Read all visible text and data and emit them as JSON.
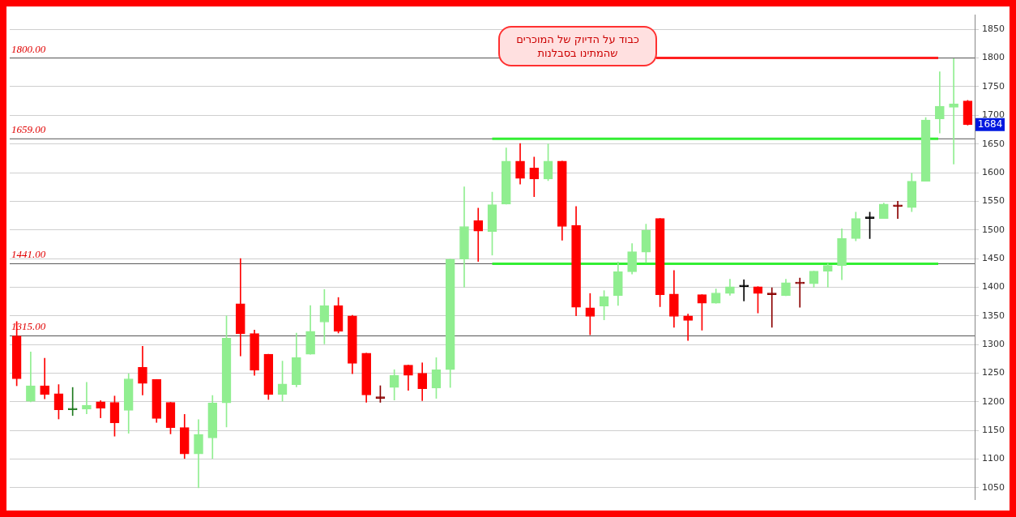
{
  "chart_data": {
    "type": "candlestick",
    "categories": [
      null,
      null,
      null,
      null,
      null,
      null,
      null,
      null,
      null,
      null,
      null,
      null,
      null,
      null,
      null,
      null,
      null,
      null,
      null,
      null,
      null,
      null,
      null,
      null,
      null,
      null,
      null,
      null,
      null,
      null,
      null,
      null,
      null,
      null,
      null,
      null,
      null,
      null,
      null,
      null,
      null,
      null,
      null,
      null,
      null,
      null,
      null,
      null,
      null,
      null,
      null,
      null,
      null,
      null,
      null,
      null,
      null,
      null,
      null,
      null,
      null,
      null,
      null,
      null,
      null,
      null,
      null,
      null,
      null
    ],
    "ohlc": [
      [
        1315,
        1340,
        1228,
        1240
      ],
      [
        1201,
        1287,
        1200,
        1228
      ],
      [
        1228,
        1276,
        1205,
        1213
      ],
      [
        1214,
        1230,
        1170,
        1186
      ],
      [
        1186,
        1225,
        1176,
        1187
      ],
      [
        1187,
        1234,
        1179,
        1194
      ],
      [
        1200,
        1202,
        1172,
        1189
      ],
      [
        1199,
        1210,
        1140,
        1163
      ],
      [
        1185,
        1249,
        1145,
        1240
      ],
      [
        1260,
        1297,
        1212,
        1232
      ],
      [
        1239,
        1239,
        1164,
        1171
      ],
      [
        1199,
        1199,
        1144,
        1155
      ],
      [
        1155,
        1178,
        1101,
        1109
      ],
      [
        1109,
        1169,
        1050,
        1143
      ],
      [
        1137,
        1211,
        1101,
        1198
      ],
      [
        1198,
        1350,
        1156,
        1311
      ],
      [
        1371,
        1450,
        1280,
        1319
      ],
      [
        1319,
        1325,
        1246,
        1255
      ],
      [
        1283,
        1283,
        1204,
        1213
      ],
      [
        1213,
        1271,
        1201,
        1231
      ],
      [
        1230,
        1320,
        1226,
        1277
      ],
      [
        1283,
        1368,
        1283,
        1323
      ],
      [
        1339,
        1396,
        1301,
        1368
      ],
      [
        1368,
        1382,
        1320,
        1323
      ],
      [
        1350,
        1351,
        1249,
        1267
      ],
      [
        1285,
        1285,
        1199,
        1212
      ],
      [
        1207,
        1228,
        1199,
        1206
      ],
      [
        1225,
        1256,
        1203,
        1246
      ],
      [
        1264,
        1264,
        1220,
        1246
      ],
      [
        1250,
        1268,
        1202,
        1223
      ],
      [
        1224,
        1277,
        1206,
        1256
      ],
      [
        1256,
        1449,
        1225,
        1449
      ],
      [
        1449,
        1575,
        1400,
        1506
      ],
      [
        1516,
        1538,
        1445,
        1498
      ],
      [
        1497,
        1566,
        1456,
        1544
      ],
      [
        1545,
        1643,
        1545,
        1620
      ],
      [
        1620,
        1651,
        1580,
        1590
      ],
      [
        1608,
        1627,
        1558,
        1589
      ],
      [
        1589,
        1650,
        1586,
        1620
      ],
      [
        1620,
        1620,
        1482,
        1506
      ],
      [
        1508,
        1541,
        1350,
        1365
      ],
      [
        1364,
        1389,
        1317,
        1349
      ],
      [
        1367,
        1394,
        1343,
        1384
      ],
      [
        1385,
        1444,
        1368,
        1427
      ],
      [
        1427,
        1476,
        1423,
        1462
      ],
      [
        1461,
        1510,
        1443,
        1499
      ],
      [
        1520,
        1520,
        1366,
        1387
      ],
      [
        1388,
        1429,
        1330,
        1349
      ],
      [
        1350,
        1353,
        1307,
        1342
      ],
      [
        1387,
        1387,
        1325,
        1372
      ],
      [
        1372,
        1397,
        1372,
        1390
      ],
      [
        1389,
        1414,
        1386,
        1401
      ],
      [
        1401,
        1413,
        1376,
        1401
      ],
      [
        1401,
        1401,
        1355,
        1389
      ],
      [
        1390,
        1399,
        1330,
        1387
      ],
      [
        1385,
        1414,
        1385,
        1408
      ],
      [
        1408,
        1416,
        1365,
        1406
      ],
      [
        1406,
        1428,
        1400,
        1428
      ],
      [
        1428,
        1441,
        1400,
        1438
      ],
      [
        1438,
        1502,
        1413,
        1485
      ],
      [
        1485,
        1531,
        1481,
        1520
      ],
      [
        1520,
        1531,
        1485,
        1521
      ],
      [
        1520,
        1547,
        1520,
        1545
      ],
      [
        1542,
        1550,
        1520,
        1541
      ],
      [
        1539,
        1599,
        1532,
        1585
      ],
      [
        1585,
        1696,
        1585,
        1692
      ],
      [
        1694,
        1776,
        1669,
        1716
      ],
      [
        1714,
        1799,
        1615,
        1720
      ],
      [
        1725,
        1726,
        1683,
        1684
      ]
    ],
    "colors": [
      "#ff0000",
      "#90ee90",
      "#ff0000",
      "#ff0000",
      "#1f7a1f",
      "#90ee90",
      "#ff0000",
      "#ff0000",
      "#90ee90",
      "#ff0000",
      "#ff0000",
      "#ff0000",
      "#ff0000",
      "#90ee90",
      "#90ee90",
      "#90ee90",
      "#ff0000",
      "#ff0000",
      "#ff0000",
      "#90ee90",
      "#90ee90",
      "#90ee90",
      "#90ee90",
      "#ff0000",
      "#ff0000",
      "#ff0000",
      "#8b0000",
      "#90ee90",
      "#ff0000",
      "#ff0000",
      "#90ee90",
      "#90ee90",
      "#90ee90",
      "#ff0000",
      "#90ee90",
      "#90ee90",
      "#ff0000",
      "#ff0000",
      "#90ee90",
      "#ff0000",
      "#ff0000",
      "#ff0000",
      "#90ee90",
      "#90ee90",
      "#90ee90",
      "#90ee90",
      "#ff0000",
      "#ff0000",
      "#ff0000",
      "#ff0000",
      "#90ee90",
      "#90ee90",
      "#000000",
      "#ff0000",
      "#8b0000",
      "#90ee90",
      "#8b0000",
      "#90ee90",
      "#90ee90",
      "#90ee90",
      "#90ee90",
      "#000000",
      "#90ee90",
      "#8b0000",
      "#90ee90",
      "#90ee90",
      "#90ee90",
      "#90ee90",
      "#ff0000"
    ],
    "ylim": [
      1030,
      1875
    ],
    "yticks": [
      1050,
      1100,
      1150,
      1200,
      1250,
      1300,
      1350,
      1400,
      1450,
      1500,
      1550,
      1600,
      1650,
      1700,
      1750,
      1800,
      1850
    ],
    "grid": "y",
    "ref_lines": [
      {
        "axis": "y",
        "value": 1800,
        "label": "1800.00",
        "color": "#555555"
      },
      {
        "axis": "y",
        "value": 1659,
        "label": "1659.00",
        "color": "#555555"
      },
      {
        "axis": "y",
        "value": 1441,
        "label": "1441.00",
        "color": "#555555"
      },
      {
        "axis": "y",
        "value": 1315,
        "label": "1315.00",
        "color": "#555555"
      },
      {
        "axis": "y",
        "value": 1800,
        "color": "#ff2020"
      },
      {
        "axis": "y",
        "value": 1659,
        "color": "#33ee33"
      },
      {
        "axis": "y",
        "value": 1441,
        "color": "#33ee33"
      }
    ],
    "annotations": [
      "כבוד על הדיוק של המוכרים שהמתינו בסבלנות",
      {
        "text": "1684",
        "y": 1684
      }
    ]
  }
}
